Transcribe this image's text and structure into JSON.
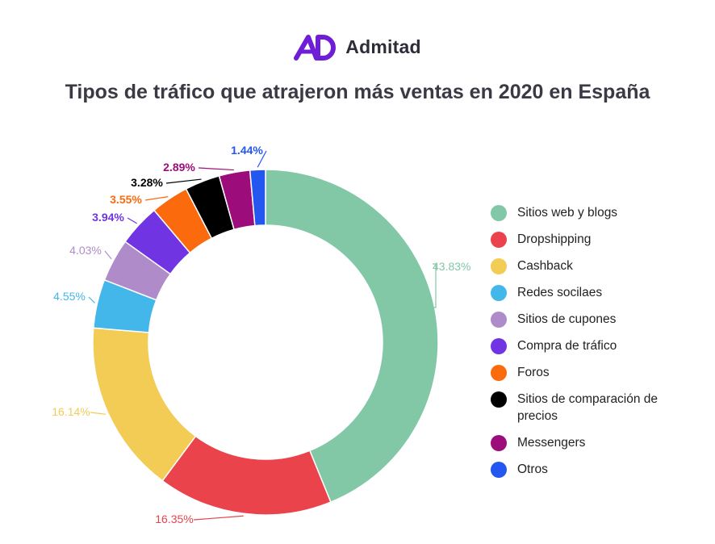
{
  "brand": {
    "name": "Admitad",
    "logo_icon": "admitad-logo-icon",
    "logo_color": "#6d1ed6"
  },
  "chart_data": {
    "type": "pie",
    "variant": "donut",
    "title": "Tipos de tráfico que atrajeron más ventas en 2020 en España",
    "legend_position": "right",
    "series": [
      {
        "name": "Sitios web y blogs",
        "value": 43.83,
        "label": "43.83%",
        "color": "#82c8a6"
      },
      {
        "name": "Dropshipping",
        "value": 16.35,
        "label": "16.35%",
        "color": "#ea434c"
      },
      {
        "name": "Cashback",
        "value": 16.14,
        "label": "16.14%",
        "color": "#f3cc55"
      },
      {
        "name": "Redes socilaes",
        "value": 4.55,
        "label": "4.55%",
        "color": "#43b7ea"
      },
      {
        "name": "Sitios de cupones",
        "value": 4.03,
        "label": "4.03%",
        "color": "#b08bc9"
      },
      {
        "name": "Compra de tráfico",
        "value": 3.94,
        "label": "3.94%",
        "color": "#7034e3"
      },
      {
        "name": "Foros",
        "value": 3.55,
        "label": "3.55%",
        "color": "#fb6a0d"
      },
      {
        "name": "Sitios de comparación de precios",
        "value": 3.28,
        "label": "3.28%",
        "color": "#000000"
      },
      {
        "name": "Messengers",
        "value": 2.89,
        "label": "2.89%",
        "color": "#9c0c7a"
      },
      {
        "name": "Otros",
        "value": 1.44,
        "label": "1.44%",
        "color": "#2456f0"
      }
    ]
  }
}
